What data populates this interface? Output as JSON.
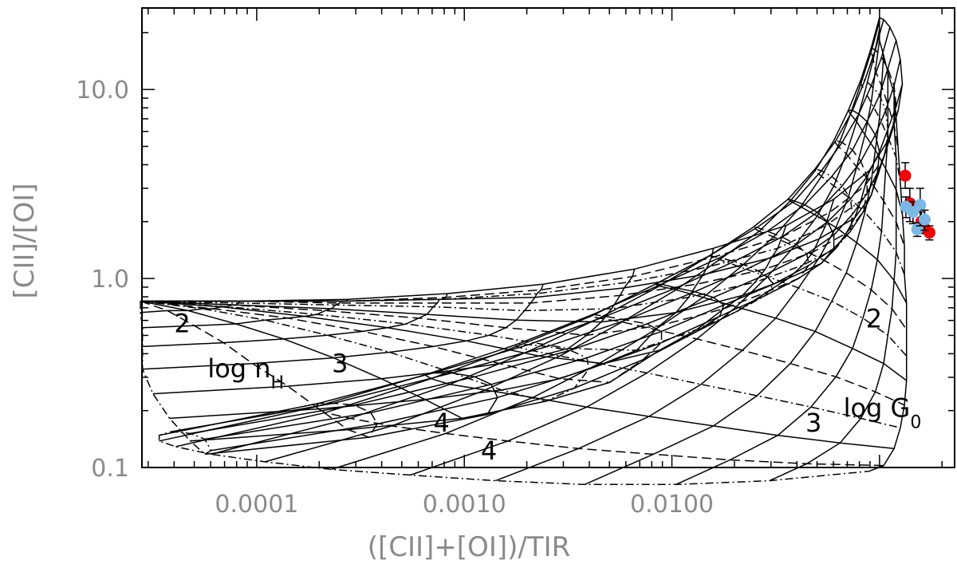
{
  "chart_data": {
    "type": "scatter",
    "title": "",
    "xlabel": "([CII]+[OI])/TIR",
    "ylabel": "[CII]/[OI]",
    "xscale": "log",
    "yscale": "log",
    "xlim": [
      2.8e-05,
      0.23
    ],
    "ylim": [
      0.1,
      27
    ],
    "x_ticks": [
      {
        "value": 0.0001,
        "label": "0.0001"
      },
      {
        "value": 0.001,
        "label": "0.0010"
      },
      {
        "value": 0.01,
        "label": "0.0100"
      }
    ],
    "y_ticks": [
      {
        "value": 0.1,
        "label": "0.1"
      },
      {
        "value": 1.0,
        "label": "1.0"
      },
      {
        "value": 10.0,
        "label": "10.0"
      }
    ],
    "grid": false,
    "legend": "none",
    "annotations": {
      "n_labels": [
        {
          "text": "2",
          "x": 4e-05,
          "y": 0.52
        },
        {
          "text": "3",
          "x": 0.00023,
          "y": 0.32
        },
        {
          "text": "4",
          "x": 0.00071,
          "y": 0.155
        }
      ],
      "n_axis": {
        "text": "log n",
        "sub": "H",
        "x": 5.8e-05,
        "y": 0.3
      },
      "g_labels": [
        {
          "text": "2",
          "x": 0.086,
          "y": 0.55
        },
        {
          "text": "3",
          "x": 0.044,
          "y": 0.155
        },
        {
          "text": "4",
          "x": 0.0012,
          "y": 0.11
        }
      ],
      "g_axis": {
        "text": "log G",
        "sub": "0",
        "x": 0.067,
        "y": 0.185
      }
    },
    "series": [
      {
        "color": "#f20000",
        "points": [
          {
            "x": 0.133,
            "y": 3.5,
            "yerr": [
              0.5,
              0.6
            ]
          },
          {
            "x": 0.14,
            "y": 2.5,
            "yerr": [
              0.5,
              0.5
            ]
          },
          {
            "x": 0.159,
            "y": 2.0,
            "yerr": [
              0.25,
              0.25
            ]
          },
          {
            "x": 0.163,
            "y": 1.88,
            "yerr": [
              0.15,
              0.15
            ]
          },
          {
            "x": 0.174,
            "y": 1.75,
            "yerr": [
              0.15,
              0.15
            ]
          }
        ]
      },
      {
        "color": "#7ab8e6",
        "points": [
          {
            "x": 0.134,
            "y": 2.4,
            "yerr": [
              0.3,
              0.3
            ]
          },
          {
            "x": 0.145,
            "y": 2.25,
            "yerr": [
              0.3,
              0.3
            ]
          },
          {
            "x": 0.152,
            "y": 1.82,
            "yerr": [
              0.15,
              0.15
            ]
          },
          {
            "x": 0.157,
            "y": 2.45,
            "yerr": [
              0.55,
              0.55
            ]
          },
          {
            "x": 0.165,
            "y": 2.05,
            "yerr": [
              0.25,
              0.25
            ]
          }
        ]
      }
    ],
    "model_grid": {
      "log_n": [
        1.0,
        1.25,
        1.5,
        1.75,
        2.0,
        2.25,
        2.5,
        2.75,
        3.0,
        3.25,
        3.5,
        3.75,
        4.0,
        4.25,
        4.5,
        4.75,
        5.0,
        5.25,
        5.5,
        5.75,
        6.0,
        6.25,
        6.5,
        6.75,
        7.0
      ],
      "log_G": [
        1.0,
        1.25,
        1.5,
        1.75,
        2.0,
        2.25,
        2.5,
        2.75,
        3.0,
        3.25,
        3.5,
        3.75,
        4.0,
        4.25,
        4.5
      ],
      "log_x": [
        [
          -4.56,
          -4.05,
          -3.56,
          -3.08,
          -2.62,
          -2.18,
          -1.8,
          -1.45,
          -1.22,
          -1.05,
          -0.96,
          -0.91,
          -0.89,
          -0.9,
          -0.92,
          -0.95,
          -0.98,
          -1.0,
          -1.0,
          -1.0,
          -1.0,
          -0.98,
          -0.96,
          -0.93,
          -0.92
        ],
        [
          -4.56,
          -4.06,
          -3.57,
          -3.09,
          -2.63,
          -2.19,
          -1.81,
          -1.47,
          -1.24,
          -1.07,
          -0.98,
          -0.94,
          -0.92,
          -0.93,
          -0.96,
          -0.99,
          -1.02,
          -1.04,
          -1.04,
          -1.03,
          -1.02,
          -0.99,
          -0.96,
          -0.93,
          -0.91
        ],
        [
          -4.56,
          -4.07,
          -3.58,
          -3.11,
          -2.65,
          -2.21,
          -1.83,
          -1.49,
          -1.26,
          -1.09,
          -1.01,
          -0.97,
          -0.96,
          -0.97,
          -1.0,
          -1.04,
          -1.07,
          -1.09,
          -1.09,
          -1.07,
          -1.04,
          -1.0,
          -0.96,
          -0.92,
          -0.9
        ],
        [
          -4.56,
          -4.07,
          -3.59,
          -3.12,
          -2.66,
          -2.23,
          -1.85,
          -1.52,
          -1.29,
          -1.12,
          -1.04,
          -1.01,
          -1.0,
          -1.02,
          -1.06,
          -1.1,
          -1.13,
          -1.15,
          -1.14,
          -1.11,
          -1.07,
          -1.02,
          -0.97,
          -0.92,
          -0.89
        ],
        [
          -4.56,
          -4.08,
          -3.6,
          -3.13,
          -2.68,
          -2.25,
          -1.88,
          -1.55,
          -1.32,
          -1.16,
          -1.08,
          -1.06,
          -1.06,
          -1.09,
          -1.13,
          -1.18,
          -1.21,
          -1.22,
          -1.2,
          -1.16,
          -1.11,
          -1.04,
          -0.98,
          -0.92,
          -0.88
        ],
        [
          -4.56,
          -4.09,
          -3.62,
          -3.15,
          -2.71,
          -2.29,
          -1.92,
          -1.6,
          -1.37,
          -1.21,
          -1.14,
          -1.13,
          -1.14,
          -1.18,
          -1.23,
          -1.28,
          -1.31,
          -1.31,
          -1.28,
          -1.22,
          -1.15,
          -1.07,
          -0.99,
          -0.92,
          -0.88
        ],
        [
          -4.56,
          -4.1,
          -3.64,
          -3.18,
          -2.75,
          -2.34,
          -1.98,
          -1.66,
          -1.44,
          -1.28,
          -1.22,
          -1.22,
          -1.25,
          -1.3,
          -1.36,
          -1.41,
          -1.44,
          -1.43,
          -1.38,
          -1.3,
          -1.21,
          -1.11,
          -1.01,
          -0.93,
          -0.87
        ],
        [
          -4.56,
          -4.12,
          -3.67,
          -3.22,
          -2.8,
          -2.41,
          -2.06,
          -1.75,
          -1.54,
          -1.39,
          -1.34,
          -1.35,
          -1.4,
          -1.47,
          -1.54,
          -1.59,
          -1.61,
          -1.58,
          -1.51,
          -1.41,
          -1.29,
          -1.16,
          -1.04,
          -0.94,
          -0.87
        ],
        [
          -4.56,
          -4.14,
          -3.71,
          -3.28,
          -2.88,
          -2.5,
          -2.17,
          -1.88,
          -1.68,
          -1.55,
          -1.51,
          -1.55,
          -1.62,
          -1.7,
          -1.77,
          -1.82,
          -1.82,
          -1.77,
          -1.67,
          -1.54,
          -1.39,
          -1.23,
          -1.08,
          -0.96,
          -0.87
        ],
        [
          -4.56,
          -4.17,
          -3.77,
          -3.37,
          -2.99,
          -2.64,
          -2.33,
          -2.06,
          -1.88,
          -1.77,
          -1.75,
          -1.8,
          -1.89,
          -1.98,
          -2.05,
          -2.08,
          -2.06,
          -1.98,
          -1.85,
          -1.69,
          -1.5,
          -1.31,
          -1.13,
          -0.98,
          -0.87
        ],
        [
          -4.56,
          -4.21,
          -3.85,
          -3.49,
          -3.15,
          -2.83,
          -2.54,
          -2.3,
          -2.14,
          -2.05,
          -2.05,
          -2.12,
          -2.22,
          -2.32,
          -2.38,
          -2.39,
          -2.35,
          -2.24,
          -2.08,
          -1.88,
          -1.66,
          -1.43,
          -1.21,
          -1.02,
          -0.88
        ],
        [
          -4.56,
          -4.26,
          -3.96,
          -3.66,
          -3.36,
          -3.08,
          -2.82,
          -2.61,
          -2.47,
          -2.4,
          -2.41,
          -2.49,
          -2.6,
          -2.69,
          -2.75,
          -2.75,
          -2.68,
          -2.54,
          -2.35,
          -2.12,
          -1.86,
          -1.59,
          -1.33,
          -1.09,
          -0.9
        ],
        [
          -4.56,
          -4.33,
          -4.1,
          -3.87,
          -3.63,
          -3.4,
          -3.19,
          -3.01,
          -2.89,
          -2.84,
          -2.87,
          -2.95,
          -3.06,
          -3.15,
          -3.19,
          -3.16,
          -3.07,
          -2.9,
          -2.67,
          -2.41,
          -2.11,
          -1.8,
          -1.49,
          -1.19,
          -0.93
        ],
        [
          -4.56,
          -4.43,
          -4.3,
          -4.16,
          -4.02,
          -3.85,
          -3.7,
          -3.56,
          -3.46,
          -3.42,
          -3.45,
          -3.53,
          -3.63,
          -3.7,
          -3.72,
          -3.67,
          -3.55,
          -3.35,
          -3.09,
          -2.79,
          -2.45,
          -2.09,
          -1.72,
          -1.35,
          -0.98
        ],
        [
          -4.56,
          -4.56,
          -4.55,
          -4.55,
          -4.55,
          -4.5,
          -4.42,
          -4.32,
          -4.25,
          -4.22,
          -4.25,
          -4.32,
          -4.41,
          -4.47,
          -4.47,
          -4.39,
          -4.22,
          -3.96,
          -3.64,
          -3.26,
          -2.85,
          -2.42,
          -1.98,
          -1.53,
          -1.05
        ]
      ],
      "log_y": [
        [
          -0.12,
          -0.12,
          -0.11,
          -0.08,
          -0.03,
          0.05,
          0.16,
          0.28,
          0.42,
          0.57,
          0.73,
          0.89,
          1.03,
          1.16,
          1.26,
          1.33,
          1.37,
          1.38,
          1.36,
          1.32,
          1.26,
          1.18,
          1.09,
          0.98,
          0.85
        ],
        [
          -0.12,
          -0.12,
          -0.12,
          -0.1,
          -0.06,
          0.01,
          0.11,
          0.22,
          0.35,
          0.49,
          0.64,
          0.78,
          0.91,
          1.02,
          1.11,
          1.17,
          1.21,
          1.22,
          1.2,
          1.16,
          1.1,
          1.02,
          0.92,
          0.81,
          0.68
        ],
        [
          -0.12,
          -0.12,
          -0.12,
          -0.11,
          -0.08,
          -0.02,
          0.06,
          0.16,
          0.28,
          0.41,
          0.54,
          0.67,
          0.79,
          0.89,
          0.97,
          1.02,
          1.05,
          1.05,
          1.03,
          0.99,
          0.93,
          0.85,
          0.75,
          0.64,
          0.51
        ],
        [
          -0.12,
          -0.12,
          -0.12,
          -0.11,
          -0.1,
          -0.05,
          0.02,
          0.11,
          0.21,
          0.32,
          0.44,
          0.56,
          0.67,
          0.76,
          0.83,
          0.87,
          0.89,
          0.89,
          0.87,
          0.83,
          0.76,
          0.68,
          0.58,
          0.47,
          0.34
        ],
        [
          -0.12,
          -0.12,
          -0.13,
          -0.13,
          -0.13,
          -0.09,
          -0.03,
          0.05,
          0.14,
          0.24,
          0.35,
          0.45,
          0.54,
          0.62,
          0.68,
          0.72,
          0.73,
          0.73,
          0.7,
          0.66,
          0.59,
          0.51,
          0.41,
          0.3,
          0.17
        ],
        [
          -0.12,
          -0.13,
          -0.14,
          -0.15,
          -0.17,
          -0.16,
          -0.1,
          -0.02,
          0.07,
          0.16,
          0.25,
          0.34,
          0.42,
          0.49,
          0.54,
          0.57,
          0.58,
          0.57,
          0.54,
          0.49,
          0.43,
          0.35,
          0.25,
          0.14,
          0.02
        ],
        [
          -0.12,
          -0.14,
          -0.16,
          -0.19,
          -0.22,
          -0.23,
          -0.18,
          -0.09,
          0.0,
          0.08,
          0.16,
          0.23,
          0.3,
          0.35,
          0.39,
          0.41,
          0.42,
          0.41,
          0.38,
          0.33,
          0.27,
          0.19,
          0.1,
          -0.01,
          -0.13
        ],
        [
          -0.12,
          -0.14,
          -0.17,
          -0.21,
          -0.26,
          -0.3,
          -0.25,
          -0.16,
          -0.07,
          0.0,
          0.07,
          0.13,
          0.18,
          0.22,
          0.25,
          0.27,
          0.27,
          0.25,
          0.22,
          0.17,
          0.11,
          0.03,
          -0.06,
          -0.16,
          -0.27
        ],
        [
          -0.12,
          -0.15,
          -0.19,
          -0.24,
          -0.3,
          -0.37,
          -0.38,
          -0.27,
          -0.17,
          -0.09,
          -0.03,
          0.02,
          0.06,
          0.09,
          0.11,
          0.12,
          0.12,
          0.1,
          0.06,
          0.01,
          -0.05,
          -0.12,
          -0.21,
          -0.3,
          -0.41
        ],
        [
          -0.12,
          -0.15,
          -0.2,
          -0.26,
          -0.33,
          -0.41,
          -0.45,
          -0.38,
          -0.28,
          -0.2,
          -0.14,
          -0.1,
          -0.07,
          -0.05,
          -0.03,
          -0.03,
          -0.04,
          -0.06,
          -0.1,
          -0.15,
          -0.21,
          -0.28,
          -0.37,
          -0.45,
          -0.54
        ],
        [
          -0.12,
          -0.16,
          -0.21,
          -0.28,
          -0.36,
          -0.45,
          -0.53,
          -0.55,
          -0.43,
          -0.34,
          -0.28,
          -0.24,
          -0.22,
          -0.2,
          -0.19,
          -0.2,
          -0.21,
          -0.23,
          -0.27,
          -0.32,
          -0.38,
          -0.45,
          -0.52,
          -0.6,
          -0.67
        ],
        [
          -0.12,
          -0.16,
          -0.22,
          -0.3,
          -0.39,
          -0.49,
          -0.59,
          -0.65,
          -0.58,
          -0.48,
          -0.42,
          -0.38,
          -0.36,
          -0.35,
          -0.35,
          -0.36,
          -0.38,
          -0.41,
          -0.45,
          -0.5,
          -0.56,
          -0.62,
          -0.68,
          -0.74,
          -0.79
        ],
        [
          -0.12,
          -0.17,
          -0.24,
          -0.32,
          -0.42,
          -0.53,
          -0.64,
          -0.74,
          -0.72,
          -0.63,
          -0.56,
          -0.52,
          -0.5,
          -0.5,
          -0.51,
          -0.53,
          -0.56,
          -0.59,
          -0.63,
          -0.68,
          -0.73,
          -0.78,
          -0.83,
          -0.87,
          -0.9
        ],
        [
          -0.12,
          -0.17,
          -0.25,
          -0.34,
          -0.45,
          -0.57,
          -0.69,
          -0.8,
          -0.84,
          -0.77,
          -0.71,
          -0.67,
          -0.66,
          -0.66,
          -0.68,
          -0.71,
          -0.74,
          -0.78,
          -0.82,
          -0.86,
          -0.9,
          -0.93,
          -0.96,
          -0.98,
          -0.99
        ],
        [
          -0.12,
          -0.18,
          -0.26,
          -0.36,
          -0.48,
          -0.61,
          -0.74,
          -0.86,
          -0.93,
          -0.91,
          -0.85,
          -0.82,
          -0.81,
          -0.83,
          -0.86,
          -0.89,
          -0.93,
          -0.97,
          -1.01,
          -1.04,
          -1.07,
          -1.09,
          -1.09,
          -1.07,
          -1.02
        ]
      ]
    }
  }
}
